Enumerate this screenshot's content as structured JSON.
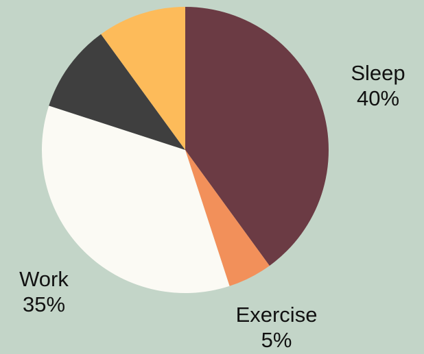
{
  "chart_data": {
    "type": "pie",
    "title": "",
    "start_angle_deg": 0,
    "direction": "clockwise",
    "slices": [
      {
        "label": "Sleep",
        "value": 40,
        "display": "40%",
        "color": "#6b3b44",
        "labeled": true
      },
      {
        "label": "Exercise",
        "value": 5,
        "display": "5%",
        "color": "#f2905a",
        "labeled": true
      },
      {
        "label": "Work",
        "value": 35,
        "display": "35%",
        "color": "#fbfaf4",
        "labeled": true
      },
      {
        "label": "",
        "value": 10,
        "display": "",
        "color": "#3f3f3f",
        "labeled": false
      },
      {
        "label": "",
        "value": 10,
        "display": "",
        "color": "#fdbb5a",
        "labeled": false
      }
    ]
  }
}
